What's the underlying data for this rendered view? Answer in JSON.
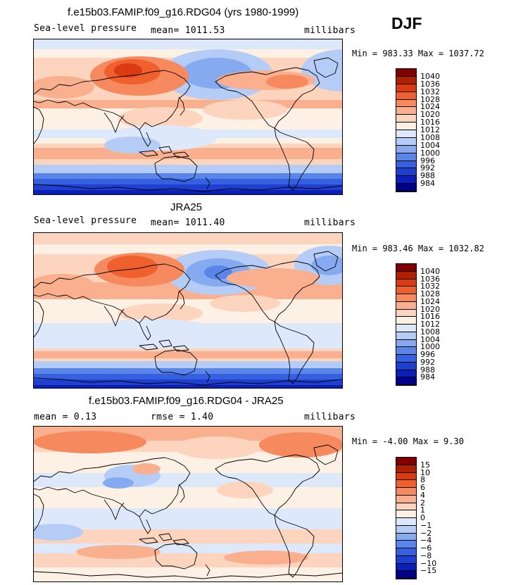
{
  "season": "DJF",
  "panels": [
    {
      "id": "model",
      "title": "f.e15b03.FAMIP.f09_g16.RDG04 (yrs 1980-1999)",
      "left_label": "Sea-level pressure",
      "center_label": "mean= 1011.53",
      "right_label": "millibars",
      "minmax": "Min = 983.33 Max = 1037.72",
      "legend_labels": [
        "1040",
        "1036",
        "1032",
        "1028",
        "1024",
        "1020",
        "1016",
        "1012",
        "1008",
        "1004",
        "1000",
        "996",
        "992",
        "988",
        "984"
      ],
      "legend_colors": [
        "#800000",
        "#b01f00",
        "#dc3a10",
        "#f0602c",
        "#f6895e",
        "#fab08f",
        "#fdd4bd",
        "#fdf0e4",
        "#dde9fb",
        "#b5cdf6",
        "#86aaf0",
        "#5a86ea",
        "#3561e0",
        "#1f3fd0",
        "#0a20b8",
        "#00008a"
      ]
    },
    {
      "id": "obs",
      "title": "JRA25",
      "left_label": "Sea-level pressure",
      "center_label": "mean= 1011.40",
      "right_label": "millibars",
      "minmax": "Min = 983.46 Max = 1032.82",
      "legend_labels": [
        "1040",
        "1036",
        "1032",
        "1028",
        "1024",
        "1020",
        "1016",
        "1012",
        "1008",
        "1004",
        "1000",
        "996",
        "992",
        "988",
        "984"
      ],
      "legend_colors": [
        "#800000",
        "#b01f00",
        "#dc3a10",
        "#f0602c",
        "#f6895e",
        "#fab08f",
        "#fdd4bd",
        "#fdf0e4",
        "#dde9fb",
        "#b5cdf6",
        "#86aaf0",
        "#5a86ea",
        "#3561e0",
        "#1f3fd0",
        "#0a20b8",
        "#00008a"
      ]
    },
    {
      "id": "diff",
      "title": "f.e15b03.FAMIP.f09_g16.RDG04 - JRA25",
      "left_label": "mean =    0.13",
      "center_label": "rmse =    1.40",
      "right_label": "millibars",
      "minmax": "Min =  -4.00 Max =   9.30",
      "legend_labels": [
        "15",
        "10",
        "8",
        "6",
        "4",
        "2",
        "1",
        "0",
        "−1",
        "−2",
        "−4",
        "−6",
        "−8",
        "−10",
        "−15"
      ],
      "legend_colors": [
        "#800000",
        "#b01f00",
        "#dc3a10",
        "#f0602c",
        "#f6895e",
        "#fab08f",
        "#fdd4bd",
        "#fdf0e4",
        "#dde9fb",
        "#b5cdf6",
        "#86aaf0",
        "#5a86ea",
        "#3561e0",
        "#1f3fd0",
        "#0a20b8",
        "#00008a"
      ]
    }
  ]
}
